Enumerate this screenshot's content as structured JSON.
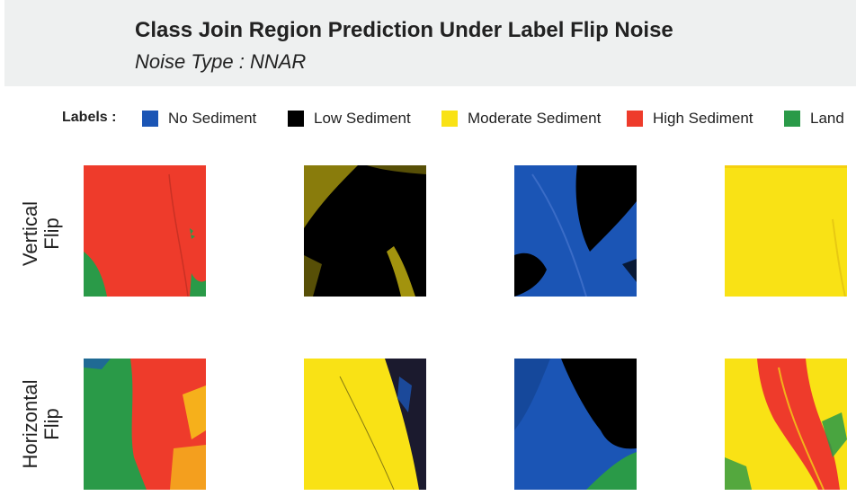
{
  "header": {
    "title": "Class Join Region Prediction Under Label Flip Noise",
    "subtitle": "Noise Type : NNAR"
  },
  "legend": {
    "title": "Labels :",
    "items": [
      {
        "label": "No Sediment",
        "color": "#1b55b5"
      },
      {
        "label": "Low Sediment",
        "color": "#000000"
      },
      {
        "label": "Moderate Sediment",
        "color": "#f9e215"
      },
      {
        "label": "High Sediment",
        "color": "#ee3b2b"
      },
      {
        "label": "Land",
        "color": "#2a9a48"
      }
    ]
  },
  "rows": [
    {
      "label_line1": "Vertical",
      "label_line2": "Flip"
    },
    {
      "label_line1": "Horizontal",
      "label_line2": "Flip"
    }
  ]
}
